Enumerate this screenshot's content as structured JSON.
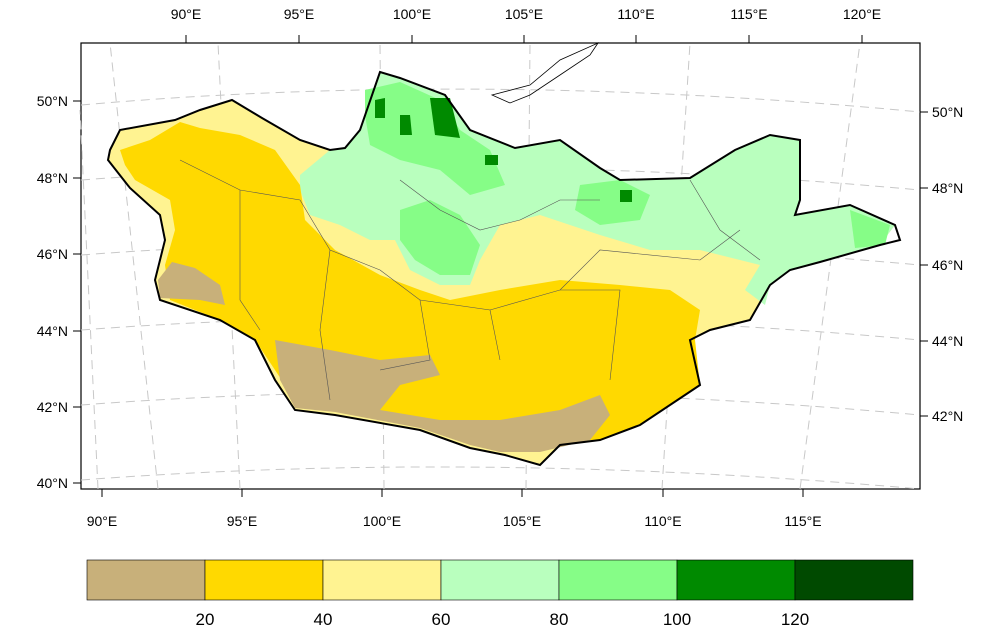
{
  "map": {
    "top_lon_labels": [
      "90°E",
      "95°E",
      "100°E",
      "105°E",
      "110°E",
      "115°E",
      "120°E"
    ],
    "bottom_lon_labels": [
      "90°E",
      "95°E",
      "100°E",
      "105°E",
      "110°E",
      "115°E"
    ],
    "left_lat_labels": [
      "50°N",
      "48°N",
      "46°N",
      "44°N",
      "42°N",
      "40°N"
    ],
    "right_lat_labels": [
      "50°N",
      "48°N",
      "46°N",
      "44°N",
      "42°N"
    ]
  },
  "colorbar": {
    "colors": [
      "#c8b07a",
      "#ffd900",
      "#fff391",
      "#b9ffbe",
      "#86fd87",
      "#008a00",
      "#004a00"
    ],
    "labels": [
      "20",
      "40",
      "60",
      "80",
      "100",
      "120"
    ]
  }
}
